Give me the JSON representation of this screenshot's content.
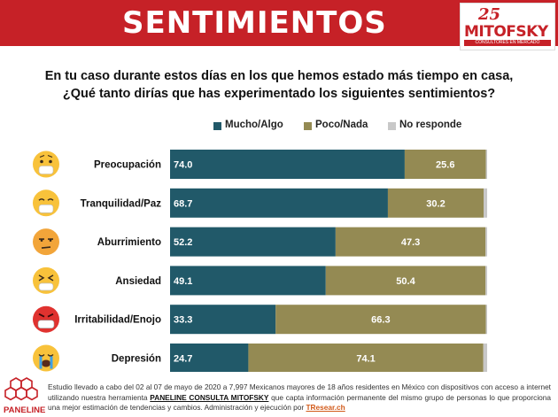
{
  "header": {
    "title": "SENTIMIENTOS"
  },
  "logo": {
    "number": "25",
    "name": "MITOFSKY",
    "tagline": "CONSULTORES EN MERCADO"
  },
  "question": {
    "line1": "En tu caso durante estos días en los que hemos estado más tiempo en casa,",
    "line2": "¿Qué tanto dirías que has experimentado los siguientes sentimientos?"
  },
  "colors": {
    "mucho": "#215969",
    "poco": "#948a53",
    "no_responde": "#c8c8c8",
    "header": "#c62127"
  },
  "chart_data": {
    "type": "bar",
    "orientation": "horizontal",
    "stacked": true,
    "categories": [
      "Preocupación",
      "Tranquilidad/Paz",
      "Aburrimiento",
      "Ansiedad",
      "Irritabilidad/Enojo",
      "Depresión"
    ],
    "icons": [
      "worried-face-icon",
      "calm-face-icon",
      "bored-face-icon",
      "anxious-face-icon",
      "angry-face-icon",
      "crying-face-icon"
    ],
    "series": [
      {
        "name": "Mucho/Algo",
        "values": [
          74.0,
          68.7,
          52.2,
          49.1,
          33.3,
          24.7
        ]
      },
      {
        "name": "Poco/Nada",
        "values": [
          25.6,
          30.2,
          47.3,
          50.4,
          66.3,
          74.1
        ]
      },
      {
        "name": "No responde",
        "values": [
          0.4,
          1.1,
          0.5,
          0.5,
          0.4,
          1.2
        ]
      }
    ],
    "labels": [
      [
        "74.0",
        "68.7",
        "52.2",
        "49.1",
        "33.3",
        "24.7"
      ],
      [
        "25.6",
        "30.2",
        "47.3",
        "50.4",
        "66.3",
        "74.1"
      ]
    ],
    "xlim": [
      0,
      100
    ],
    "legend_position": "top",
    "grid": false
  },
  "footer": {
    "brand": "PANELINE",
    "text_pre": "Estudio llevado a cabo del 02 al 07 de mayo de 2020 a 7,997 Mexicanos mayores de 18 años residentes en México con dispositivos con acceso a internet utilizando nuestra herramienta ",
    "text_brand": "PANELINE CONSULTA MITOFSKY",
    "text_mid": " que capta información permanente del mismo grupo de personas lo que proporciona una mejor estimación de tendencias y cambios. Administración y ejecución por ",
    "text_link": "TResear.ch"
  }
}
